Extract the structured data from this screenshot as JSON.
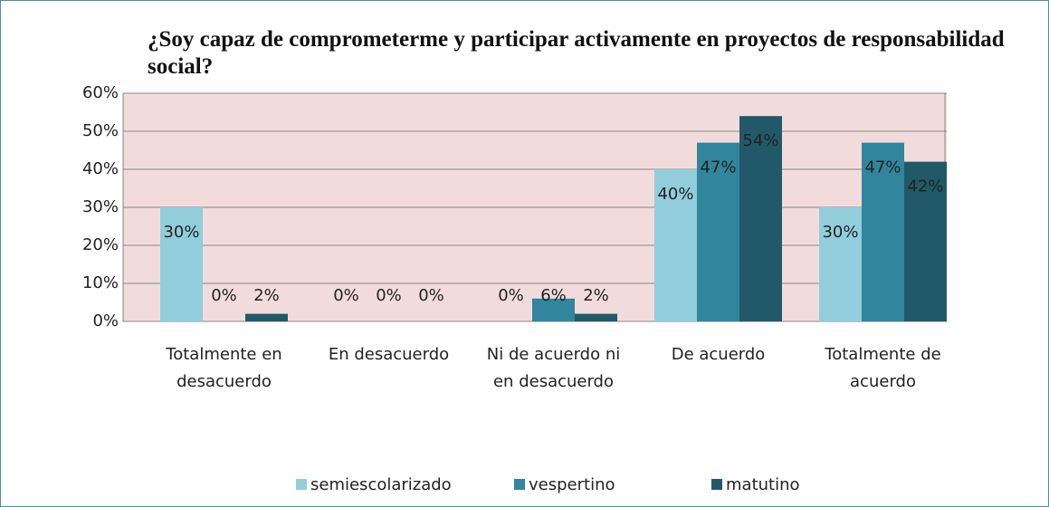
{
  "chart_data": {
    "type": "bar",
    "title": "¿Soy capaz de comprometerme y participar activamente en proyectos de responsabilidad social?",
    "categories": [
      "Totalmente en desacuerdo",
      "En desacuerdo",
      "Ni de acuerdo ni en desacuerdo",
      "De acuerdo",
      "Totalmente de acuerdo"
    ],
    "series": [
      {
        "name": "semiescolarizado",
        "color": "#92cddc",
        "values": [
          30,
          0,
          0,
          40,
          30
        ],
        "value_labels": [
          "30%",
          "0%",
          "0%",
          "40%",
          "30%"
        ]
      },
      {
        "name": "vespertino",
        "color": "#31859c",
        "values": [
          0,
          0,
          6,
          47,
          47
        ],
        "value_labels": [
          "0%",
          "0%",
          "6%",
          "47%",
          "47%"
        ]
      },
      {
        "name": "matutino",
        "color": "#215968",
        "values": [
          2,
          0,
          2,
          54,
          42
        ],
        "value_labels": [
          "2%",
          "0%",
          "2%",
          "54%",
          "42%"
        ]
      }
    ],
    "ylim": [
      0,
      60
    ],
    "yticks": [
      {
        "value": 0,
        "label": "0%"
      },
      {
        "value": 10,
        "label": "10%"
      },
      {
        "value": 20,
        "label": "20%"
      },
      {
        "value": 30,
        "label": "30%"
      },
      {
        "value": 40,
        "label": "40%"
      },
      {
        "value": 50,
        "label": "50%"
      },
      {
        "value": 60,
        "label": "60%"
      }
    ],
    "grid": true,
    "legend": "bottom",
    "plot_background": "#f2dcdb"
  }
}
